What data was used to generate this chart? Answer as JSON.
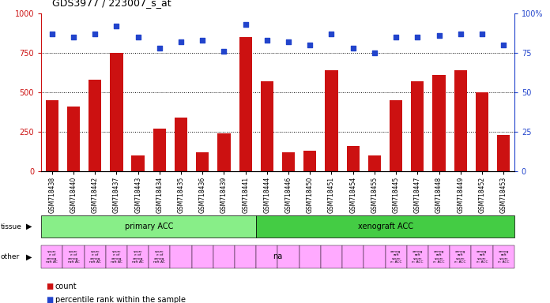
{
  "title": "GDS3977 / 223007_s_at",
  "samples": [
    "GSM718438",
    "GSM718440",
    "GSM718442",
    "GSM718437",
    "GSM718443",
    "GSM718434",
    "GSM718435",
    "GSM718436",
    "GSM718439",
    "GSM718441",
    "GSM718444",
    "GSM718446",
    "GSM718450",
    "GSM718451",
    "GSM718454",
    "GSM718455",
    "GSM718445",
    "GSM718447",
    "GSM718448",
    "GSM718449",
    "GSM718452",
    "GSM718453"
  ],
  "counts": [
    450,
    410,
    580,
    750,
    100,
    270,
    340,
    120,
    240,
    850,
    570,
    120,
    130,
    640,
    160,
    100,
    450,
    570,
    610,
    640,
    500,
    230
  ],
  "percentiles": [
    87,
    85,
    87,
    92,
    85,
    78,
    82,
    83,
    76,
    93,
    83,
    82,
    80,
    87,
    78,
    75,
    85,
    85,
    86,
    87,
    87,
    80
  ],
  "n_primary": 10,
  "n_total": 22,
  "bar_color": "#cc1111",
  "dot_color": "#2244cc",
  "tissue_primary_color": "#88ee88",
  "tissue_xeno_color": "#44cc44",
  "other_color": "#ffaaff",
  "ylim_left": [
    0,
    1000
  ],
  "ylim_right": [
    0,
    100
  ],
  "yticks_left": [
    0,
    250,
    500,
    750,
    1000
  ],
  "yticks_right": [
    0,
    25,
    50,
    75,
    100
  ]
}
